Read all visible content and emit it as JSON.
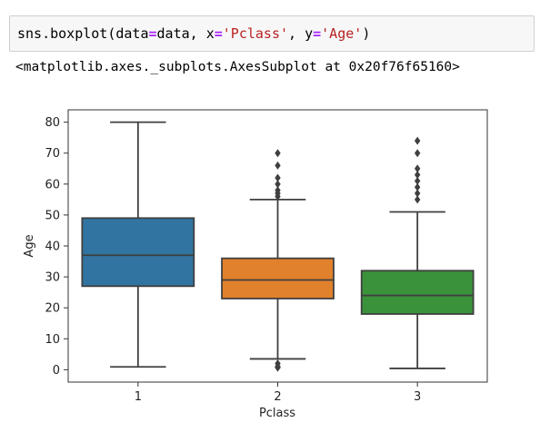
{
  "code": {
    "fn": "sns.boxplot(data",
    "eq1": "=",
    "arg1": "data, x",
    "eq2": "=",
    "str1": "'Pclass'",
    "sep": ", y",
    "eq3": "=",
    "str2": "'Age'",
    "close": ")"
  },
  "output": {
    "text": "<matplotlib.axes._subplots.AxesSubplot at 0x20f76f65160>"
  },
  "chart_data": {
    "type": "box",
    "xlabel": "Pclass",
    "ylabel": "Age",
    "ylim": [
      -4,
      84
    ],
    "yticks": [
      0,
      10,
      20,
      30,
      40,
      50,
      60,
      70,
      80
    ],
    "categories": [
      "1",
      "2",
      "3"
    ],
    "boxes": [
      {
        "category": "1",
        "color": "#3274a1",
        "whisker_low": 0.92,
        "q1": 27,
        "median": 37,
        "q3": 49,
        "whisker_high": 80,
        "outliers": []
      },
      {
        "category": "2",
        "color": "#e1812c",
        "whisker_low": 3.5,
        "q1": 23,
        "median": 29,
        "q3": 36,
        "whisker_high": 55,
        "outliers": [
          0.67,
          0.83,
          1,
          1,
          2,
          56,
          57,
          58,
          60,
          62,
          66,
          70
        ]
      },
      {
        "category": "3",
        "color": "#3a923a",
        "whisker_low": 0.42,
        "q1": 18,
        "median": 24,
        "q3": 32,
        "whisker_high": 51,
        "outliers": [
          55,
          57,
          59,
          61,
          63,
          65,
          70,
          74
        ]
      }
    ]
  }
}
